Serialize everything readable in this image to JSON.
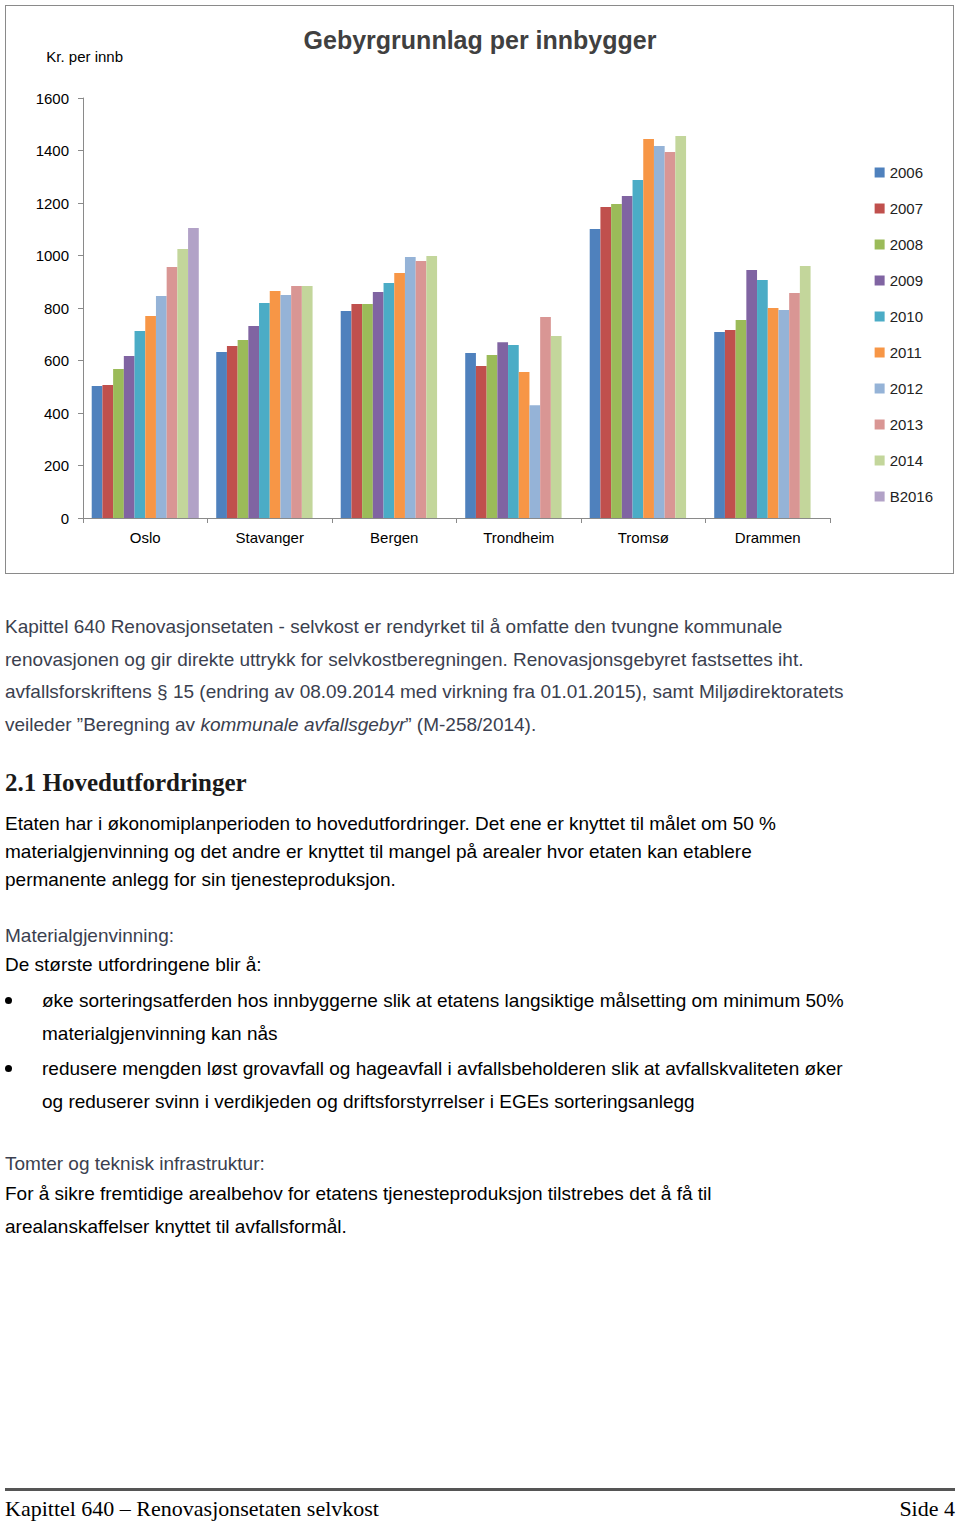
{
  "chart_data": {
    "type": "bar",
    "title": "Gebyrgrunnlag per innbygger",
    "ylabel": "Kr. per innb",
    "categories": [
      "Oslo",
      "Stavanger",
      "Bergen",
      "Trondheim",
      "Tromsø",
      "Drammen"
    ],
    "series": [
      {
        "name": "2006",
        "color": "#4f81bd",
        "values": [
          503,
          632,
          789,
          629,
          1101,
          709
        ]
      },
      {
        "name": "2007",
        "color": "#c0504d",
        "values": [
          507,
          655,
          815,
          579,
          1185,
          716
        ]
      },
      {
        "name": "2008",
        "color": "#9bbb59",
        "values": [
          568,
          678,
          815,
          621,
          1196,
          754
        ]
      },
      {
        "name": "2009",
        "color": "#8064a2",
        "values": [
          617,
          731,
          861,
          670,
          1227,
          945
        ]
      },
      {
        "name": "2010",
        "color": "#4bacc6",
        "values": [
          712,
          819,
          895,
          659,
          1288,
          907
        ]
      },
      {
        "name": "2011",
        "color": "#f79646",
        "values": [
          770,
          865,
          933,
          556,
          1444,
          800
        ]
      },
      {
        "name": "2012",
        "color": "#95b3d7",
        "values": [
          846,
          850,
          994,
          430,
          1417,
          792
        ]
      },
      {
        "name": "2013",
        "color": "#d99694",
        "values": [
          956,
          884,
          979,
          766,
          1394,
          857
        ]
      },
      {
        "name": "2014",
        "color": "#c3d69b",
        "values": [
          1025,
          884,
          998,
          693,
          1455,
          960
        ]
      },
      {
        "name": "B2016",
        "color": "#b2a2c7",
        "values": [
          1105,
          null,
          null,
          null,
          null,
          null
        ]
      }
    ],
    "ylim": [
      0,
      1600
    ],
    "yticks": [
      0,
      200,
      400,
      600,
      800,
      1000,
      1200,
      1400,
      1600
    ],
    "grid": false,
    "legend": "right"
  },
  "document": {
    "intro": {
      "lines": [
        "Kapittel 640 Renovasjonsetaten - selvkost er rendyrket til å omfatte den tvungne kommunale",
        "renovasjonen og gir direkte uttrykk for selvkostberegningen. Renovasjonsgebyret fastsettes iht.",
        "avfallsforskriftens § 15 (endring av 08.09.2014 med virkning fra 01.01.2015), samt Miljødirektoratets",
        [
          {
            "text": "veileder ”Beregning av "
          },
          {
            "text": "kommunale avfallsgebyr",
            "style": "italic"
          },
          {
            "text": "” (M-258/2014)."
          }
        ]
      ]
    },
    "heading": "2.1 Hovedutfordringer",
    "section_intro": {
      "lines": [
        "Etaten har i økonomiplanperioden to hovedutfordringer. Det ene er knyttet til målet om 50 %",
        "materialgjenvinning og det andre er knyttet til mangel på arealer hvor etaten kan etablere",
        "permanente anlegg for sin tjenesteproduksjon."
      ]
    },
    "subsections": [
      {
        "label": "Materialgjenvinning:",
        "lines": [
          "De største utfordringene blir å:"
        ],
        "bullets": [
          [
            "øke sorteringsatferden hos innbyggerne slik at etatens langsiktige målsetting om minimum 50%",
            "materialgjenvinning kan nås"
          ],
          [
            "redusere mengden løst grovavfall og hageavfall i avfallsbeholderen slik at avfallskvaliteten øker",
            "og reduserer svinn i verdikjeden og driftsforstyrrelser i EGEs sorteringsanlegg"
          ]
        ]
      },
      {
        "label": "Tomter og teknisk infrastruktur:",
        "lines": [
          "For å sikre fremtidige arealbehov for etatens tjenesteproduksjon tilstrebes det å få til",
          "arealanskaffelser knyttet til avfallsformål."
        ]
      }
    ],
    "footer": {
      "left": "Kapittel 640 – Renovasjonsetaten selvkost",
      "right": "Side 4"
    }
  }
}
